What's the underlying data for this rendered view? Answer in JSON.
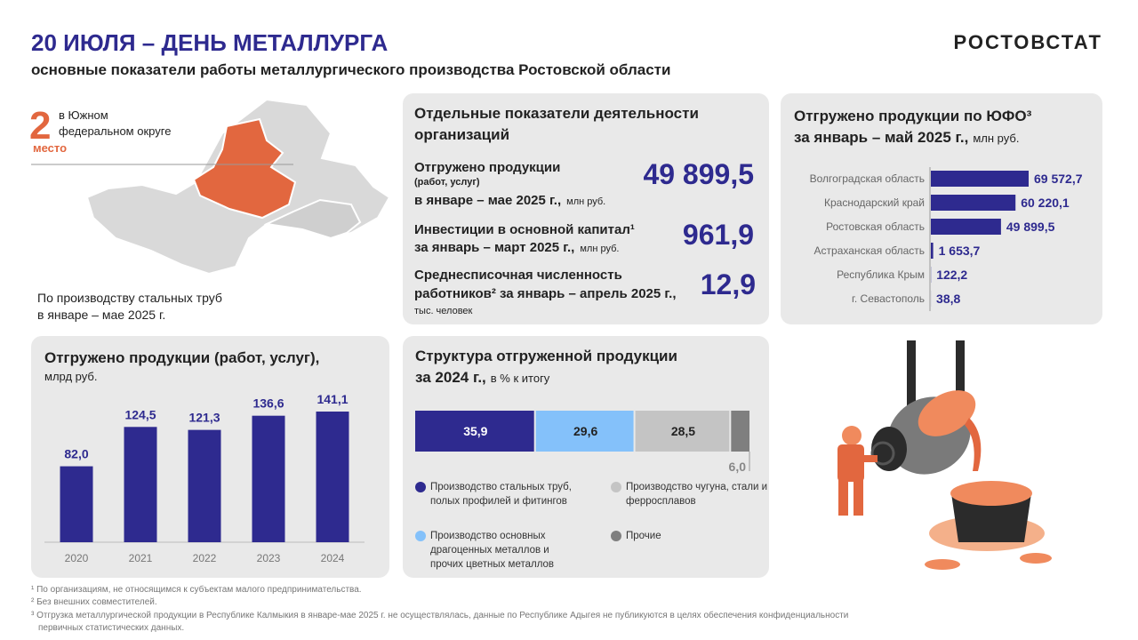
{
  "header": {
    "title": "20 ИЮЛЯ – ДЕНЬ МЕТАЛЛУРГА",
    "subtitle": "основные показатели работы металлургического производства Ростовской области",
    "brand": "РОСТОВСТАТ"
  },
  "rank": {
    "value": "2",
    "text_lines": [
      "в Южном",
      "федеральном округе"
    ],
    "word": "место",
    "note_lines": [
      "По производству стальных труб",
      "в январе – мае 2025 г."
    ]
  },
  "indicators": {
    "title_lines": [
      "Отдельные показатели деятельности",
      "организаций"
    ],
    "items": [
      {
        "lines": [
          "Отгружено продукции",
          "(работ, услуг)",
          "в январе – мае 2025 г.,"
        ],
        "unit": "млн руб.",
        "value": "49 899,5"
      },
      {
        "lines": [
          "Инвестиции в основной капитал¹",
          "за январь – март 2025 г.,"
        ],
        "unit": "млн руб.",
        "value": "961,9"
      },
      {
        "lines": [
          "Среднесписочная численность",
          "работников² за январь – апрель 2025 г.,"
        ],
        "unit": "тыс. человек",
        "value": "12,9"
      }
    ]
  },
  "chart_data": [
    {
      "type": "hbar",
      "title": "Отгружено продукции по ЮФО³",
      "subtitle": "за январь – май 2025 г.,",
      "unit": "млн руб.",
      "categories": [
        "Волгоградская область",
        "Краснодарский край",
        "Ростовская область",
        "Астраханская область",
        "Республика Крым",
        "г. Севастополь"
      ],
      "values": [
        69572.7,
        60220.1,
        49899.5,
        1653.7,
        122.2,
        38.8
      ],
      "value_labels": [
        "69 572,7",
        "60 220,1",
        "49 899,5",
        "1 653,7",
        "122,2",
        "38,8"
      ],
      "color": "#2e2a8f"
    },
    {
      "type": "bar",
      "title": "Отгружено продукции (работ, услуг),",
      "unit": "млрд руб.",
      "categories": [
        "2020",
        "2021",
        "2022",
        "2023",
        "2024"
      ],
      "values": [
        82.0,
        124.5,
        121.3,
        136.6,
        141.1
      ],
      "value_labels": [
        "82,0",
        "124,5",
        "121,3",
        "136,6",
        "141,1"
      ],
      "color": "#2e2a8f"
    },
    {
      "type": "stacked_bar",
      "title": "Структура отгруженной продукции",
      "subtitle": "за 2024 г.,",
      "unit": "в % к итогу",
      "series": [
        {
          "name": "Производство стальных труб, полых профилей и фитингов",
          "color": "#2e2a8f",
          "values": [
            35.9
          ],
          "value_labels": [
            "35,9"
          ]
        },
        {
          "name": "Производство основных драгоценных металлов и прочих цветных металлов",
          "color": "#84c1fa",
          "values": [
            29.6
          ],
          "value_labels": [
            "29,6"
          ]
        },
        {
          "name": "Производство чугуна, стали и ферросплавов",
          "color": "#c4c4c4",
          "values": [
            28.5
          ],
          "value_labels": [
            "28,5"
          ]
        },
        {
          "name": "Прочие",
          "color": "#7f7f7f",
          "values": [
            6.0
          ],
          "value_labels": [
            "6,0"
          ]
        }
      ]
    }
  ],
  "footnotes": [
    "¹ По организациям, не относящимся к субъектам малого предпринимательства.",
    "² Без внешних совместителей.",
    "³ Отгрузка металлургической продукции в Республике Калмыкия в январе-мае 2025 г. не осуществлялась, данные по Республике Адыгея не публикуются в целях обеспечения конфиденциальности",
    "первичных статистических данных."
  ]
}
